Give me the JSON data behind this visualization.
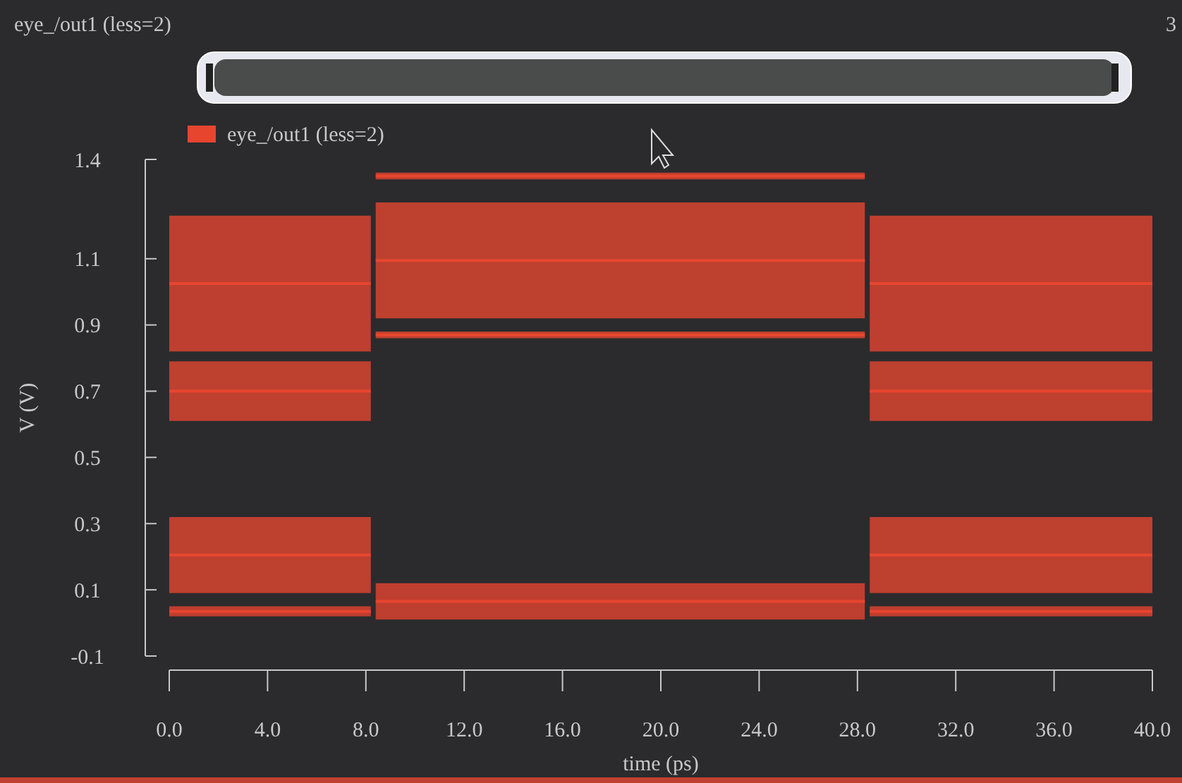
{
  "chart_data": {
    "type": "line",
    "marker": "none",
    "line_style": "solid",
    "title": "eye_/out1 (less=2)",
    "xlabel": "time (ps)",
    "ylabel": "V (V)",
    "xlim": [
      0,
      40
    ],
    "xticks": [
      {
        "value": 0,
        "label": "0.0"
      },
      {
        "value": 4,
        "label": "4.0"
      },
      {
        "value": 8,
        "label": "8.0"
      },
      {
        "value": 12,
        "label": "12.0"
      },
      {
        "value": 16,
        "label": "16.0"
      },
      {
        "value": 20,
        "label": "20.0"
      },
      {
        "value": 24,
        "label": "24.0"
      },
      {
        "value": 28,
        "label": "28.0"
      },
      {
        "value": 32,
        "label": "32.0"
      },
      {
        "value": 36,
        "label": "36.0"
      },
      {
        "value": 40,
        "label": "40.0"
      }
    ],
    "ylim": [
      -0.1,
      1.4
    ],
    "yticks": [
      -0.1,
      0.1,
      0.3,
      0.5,
      0.7,
      0.9,
      1.1,
      1.4
    ],
    "legend": "top left",
    "grid": false,
    "annotations": [
      "3"
    ],
    "series": [
      {
        "name": "eye_/out1 (less=2)",
        "color": "#e8452f",
        "x": [
          0,
          8.2
        ],
        "values": [
          1.025,
          1.025
        ],
        "lower": [
          0.82,
          0.82
        ],
        "upper": [
          1.23,
          1.23
        ]
      },
      {
        "color": "#e8462f",
        "x": [
          0,
          8.2
        ],
        "values": [
          0.7,
          0.7
        ],
        "lower": [
          0.61,
          0.61
        ],
        "upper": [
          0.79,
          0.79
        ]
      },
      {
        "color": "#e8472f",
        "x": [
          0,
          8.2
        ],
        "values": [
          0.205,
          0.205
        ],
        "lower": [
          0.09,
          0.09
        ],
        "upper": [
          0.32,
          0.32
        ]
      },
      {
        "color": "#e8442f",
        "x": [
          0,
          8.2
        ],
        "values": [
          0.035,
          0.035
        ],
        "lower": [
          0.02,
          0.02
        ],
        "upper": [
          0.05,
          0.05
        ]
      },
      {
        "color": "#e8452f",
        "x": [
          8.4,
          28.3
        ],
        "values": [
          1.35,
          1.35
        ],
        "lower": [
          1.34,
          1.34
        ],
        "upper": [
          1.36,
          1.36
        ]
      },
      {
        "color": "#e8462f",
        "x": [
          8.4,
          28.3
        ],
        "values": [
          1.095,
          1.095
        ],
        "lower": [
          0.92,
          0.92
        ],
        "upper": [
          1.27,
          1.27
        ]
      },
      {
        "color": "#e8472f",
        "x": [
          8.4,
          28.3
        ],
        "values": [
          0.87,
          0.87
        ],
        "lower": [
          0.86,
          0.86
        ],
        "upper": [
          0.88,
          0.88
        ]
      },
      {
        "color": "#e8442f",
        "x": [
          8.4,
          28.3
        ],
        "values": [
          0.065,
          0.065
        ],
        "lower": [
          0.01,
          0.01
        ],
        "upper": [
          0.12,
          0.12
        ]
      },
      {
        "color": "#e8452f",
        "x": [
          28.5,
          40
        ],
        "values": [
          1.025,
          1.025
        ],
        "lower": [
          0.82,
          0.82
        ],
        "upper": [
          1.23,
          1.23
        ]
      },
      {
        "color": "#e8462f",
        "x": [
          28.5,
          40
        ],
        "values": [
          0.7,
          0.7
        ],
        "lower": [
          0.61,
          0.61
        ],
        "upper": [
          0.79,
          0.79
        ]
      },
      {
        "color": "#e8472f",
        "x": [
          28.5,
          40
        ],
        "values": [
          0.205,
          0.205
        ],
        "lower": [
          0.09,
          0.09
        ],
        "upper": [
          0.32,
          0.32
        ]
      },
      {
        "color": "#e8442f",
        "x": [
          28.5,
          40
        ],
        "values": [
          0.035,
          0.035
        ],
        "lower": [
          0.02,
          0.02
        ],
        "upper": [
          0.05,
          0.05
        ]
      }
    ]
  }
}
